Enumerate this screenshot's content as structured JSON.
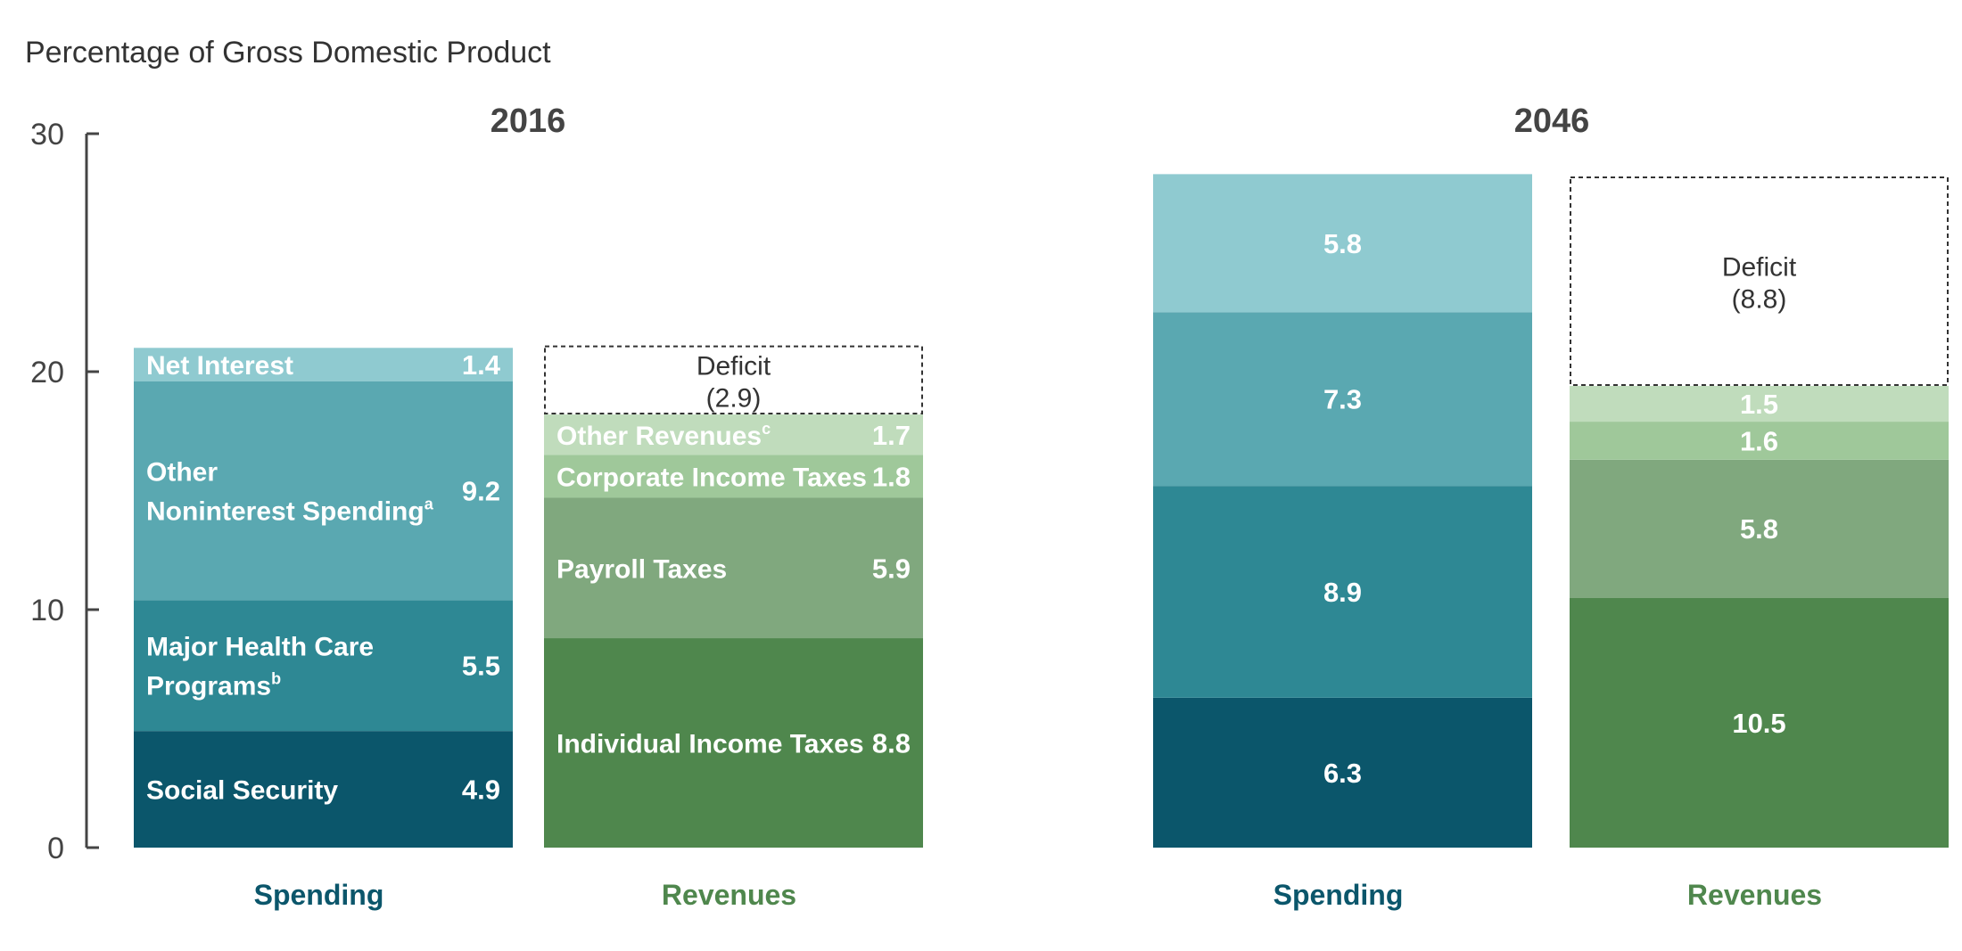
{
  "chart_data": {
    "type": "bar",
    "stacked": true,
    "ylabel": "Percentage of Gross Domestic Product",
    "ylim": [
      0,
      30
    ],
    "yticks": [
      "0",
      "10",
      "20",
      "30"
    ],
    "grid": false,
    "colors": {
      "spending": [
        "#0b566b",
        "#2e8894",
        "#5aa8b1",
        "#8fcad0"
      ],
      "revenues": [
        "#4f874d",
        "#80a87e",
        "#9fc89a",
        "#c0dcbc"
      ],
      "spending_text": "#0b566b",
      "revenues_text": "#4f874d",
      "deficit_border": "#333333"
    },
    "groups": [
      {
        "year": "2016",
        "bars": [
          {
            "name": "Spending",
            "segments": [
              {
                "label": "Social Security",
                "value": 4.9,
                "value_label": "4.9"
              },
              {
                "label": "Major Health Care Programs",
                "label_lines": [
                  "Major Health Care",
                  "Programs"
                ],
                "superscript": "b",
                "value": 5.5,
                "value_label": "5.5"
              },
              {
                "label": "Other Noninterest Spending",
                "label_lines": [
                  "Other",
                  "Noninterest Spending"
                ],
                "superscript": "a",
                "value": 9.2,
                "value_label": "9.2"
              },
              {
                "label": "Net Interest",
                "value": 1.4,
                "value_label": "1.4"
              }
            ]
          },
          {
            "name": "Revenues",
            "segments": [
              {
                "label": "Individual Income Taxes",
                "value": 8.8,
                "value_label": "8.8"
              },
              {
                "label": "Payroll Taxes",
                "value": 5.9,
                "value_label": "5.9"
              },
              {
                "label": "Corporate Income Taxes",
                "value": 1.8,
                "value_label": "1.8"
              },
              {
                "label": "Other Revenues",
                "superscript": "c",
                "value": 1.7,
                "value_label": "1.7"
              }
            ],
            "deficit": {
              "label": "Deficit",
              "value": 2.9,
              "value_label": "(2.9)"
            }
          }
        ]
      },
      {
        "year": "2046",
        "bars": [
          {
            "name": "Spending",
            "segments": [
              {
                "value": 6.3,
                "value_label": "6.3"
              },
              {
                "value": 8.9,
                "value_label": "8.9"
              },
              {
                "value": 7.3,
                "value_label": "7.3"
              },
              {
                "value": 5.8,
                "value_label": "5.8"
              }
            ]
          },
          {
            "name": "Revenues",
            "segments": [
              {
                "value": 10.5,
                "value_label": "10.5"
              },
              {
                "value": 5.8,
                "value_label": "5.8"
              },
              {
                "value": 1.6,
                "value_label": "1.6"
              },
              {
                "value": 1.5,
                "value_label": "1.5"
              }
            ],
            "deficit": {
              "label": "Deficit",
              "value": 8.8,
              "value_label": "(8.8)"
            }
          }
        ]
      }
    ]
  }
}
